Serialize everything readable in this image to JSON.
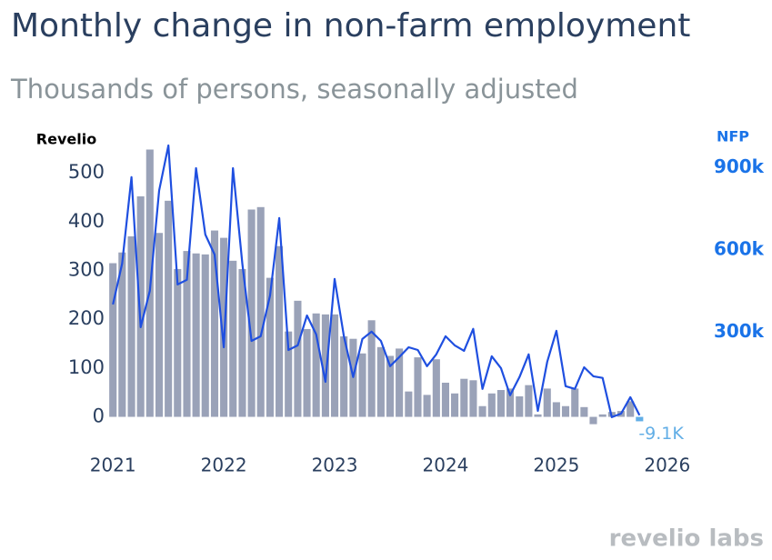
{
  "chart_data": {
    "type": "bar_line",
    "title": "Monthly change in non-farm employment",
    "subtitle": "Thousands of persons, seasonally adjusted",
    "footer": "revelio labs",
    "x": [
      2021,
      2021.083,
      2021.167,
      2021.25,
      2021.333,
      2021.417,
      2021.5,
      2021.583,
      2021.667,
      2021.75,
      2021.833,
      2021.917,
      2022,
      2022.083,
      2022.167,
      2022.25,
      2022.333,
      2022.417,
      2022.5,
      2022.583,
      2022.667,
      2022.75,
      2022.833,
      2022.917,
      2023,
      2023.083,
      2023.167,
      2023.25,
      2023.333,
      2023.417,
      2023.5,
      2023.583,
      2023.667,
      2023.75,
      2023.833,
      2023.917,
      2024,
      2024.083,
      2024.167,
      2024.25,
      2024.333,
      2024.417,
      2024.5,
      2024.583,
      2024.667,
      2024.75,
      2024.833,
      2024.917,
      2025,
      2025.083,
      2025.167,
      2025.25,
      2025.333,
      2025.417,
      2025.5,
      2025.583,
      2025.667,
      2025.75
    ],
    "xlim": [
      2020.9,
      2026.1
    ],
    "xticks": [
      2021,
      2022,
      2023,
      2024,
      2025,
      2026
    ],
    "ylim": [
      -40,
      575
    ],
    "yticks": [
      0,
      100,
      200,
      300,
      400,
      500
    ],
    "y2lim": [
      -80,
      1014
    ],
    "y2ticks": [
      {
        "value": 300,
        "label": "300k"
      },
      {
        "value": 600,
        "label": "600k"
      },
      {
        "value": 900,
        "label": "900k"
      }
    ],
    "series": [
      {
        "name": "Revelio",
        "type": "bar",
        "axis": "y",
        "color": "#9aa2b8",
        "last_color": "#62aee6",
        "values": [
          315,
          337,
          370,
          452,
          548,
          377,
          443,
          303,
          340,
          335,
          333,
          382,
          367,
          320,
          303,
          425,
          430,
          285,
          350,
          175,
          238,
          180,
          212,
          210,
          210,
          165,
          160,
          130,
          198,
          143,
          125,
          140,
          52,
          122,
          45,
          118,
          70,
          48,
          78,
          75,
          22,
          48,
          55,
          58,
          42,
          65,
          5,
          58,
          30,
          22,
          58,
          20,
          -15,
          5,
          10,
          12,
          32,
          -9.1
        ],
        "value_labels": [
          null,
          null,
          null,
          null,
          null,
          null,
          null,
          null,
          null,
          null,
          null,
          null,
          null,
          null,
          null,
          null,
          null,
          null,
          null,
          null,
          null,
          null,
          null,
          null,
          null,
          null,
          null,
          null,
          null,
          null,
          null,
          null,
          null,
          null,
          null,
          null,
          null,
          null,
          null,
          null,
          null,
          null,
          null,
          null,
          null,
          null,
          null,
          null,
          null,
          null,
          null,
          null,
          null,
          null,
          null,
          null,
          null,
          "-9.1K"
        ]
      },
      {
        "name": "NFP",
        "type": "line",
        "axis": "y2",
        "color": "#1f4fe0",
        "values": [
          401,
          550,
          865,
          318,
          451,
          816,
          981,
          474,
          491,
          898,
          656,
          583,
          245,
          898,
          550,
          268,
          285,
          434,
          716,
          235,
          252,
          361,
          292,
          119,
          494,
          285,
          136,
          275,
          302,
          268,
          176,
          209,
          245,
          235,
          176,
          219,
          285,
          252,
          232,
          312,
          93,
          212,
          169,
          70,
          136,
          219,
          13,
          192,
          305,
          103,
          93,
          172,
          139,
          133,
          -10,
          3,
          63,
          -3
        ]
      }
    ],
    "axis_label_color": "#1a73e8"
  }
}
